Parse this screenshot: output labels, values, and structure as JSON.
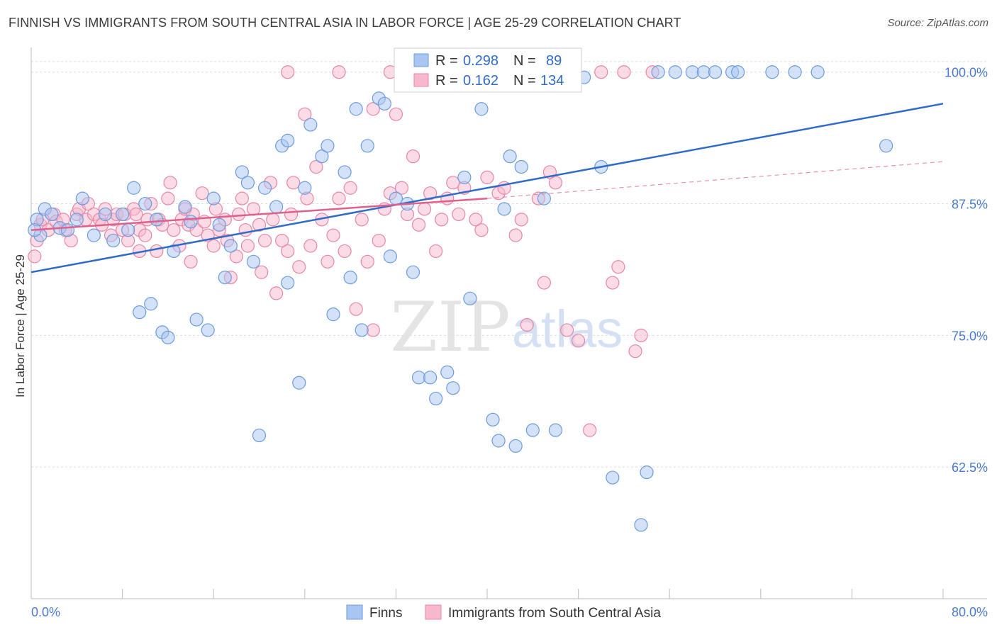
{
  "title": "FINNISH VS IMMIGRANTS FROM SOUTH CENTRAL ASIA IN LABOR FORCE | AGE 25-29 CORRELATION CHART",
  "source": "Source: ZipAtlas.com",
  "watermark": {
    "zip": "ZIP",
    "atlas": "atlas"
  },
  "chart_data": {
    "type": "scatter",
    "ylabel": "In Labor Force | Age 25-29",
    "xlabel": "",
    "xlim": [
      0,
      80
    ],
    "ylim": [
      50,
      102
    ],
    "x_tick_labels": [
      "0.0%",
      "80.0%"
    ],
    "y_ticks": [
      62.5,
      75.0,
      87.5,
      100.0
    ],
    "y_tick_labels": [
      "62.5%",
      "75.0%",
      "87.5%",
      "100.0%"
    ],
    "grid": true,
    "legend_position": "bottom",
    "stats_position": "top-center",
    "colors": {
      "finns_fill": "#a9c6f2",
      "finns_edge": "#6b9be0",
      "finns_line": "#2f6bc9",
      "asia_fill": "#f7b8cc",
      "asia_edge": "#e886a6",
      "asia_line": "#e0608b",
      "text_blue": "#2f6bc9",
      "grid": "#dddddd"
    },
    "series": [
      {
        "name": "Finns",
        "stats": {
          "r_label": "R =",
          "r": "0.298",
          "n_label": "N =",
          "n": "89"
        },
        "trend": {
          "x": [
            0,
            80
          ],
          "y": [
            81.0,
            97.0
          ],
          "dashed_to": null
        },
        "points": [
          [
            0.5,
            86.0
          ],
          [
            0.8,
            84.5
          ],
          [
            1.2,
            87.0
          ],
          [
            1.8,
            86.5
          ],
          [
            2.5,
            85.2
          ],
          [
            3.2,
            85.0
          ],
          [
            4.0,
            86.0
          ],
          [
            4.5,
            88.0
          ],
          [
            5.5,
            84.5
          ],
          [
            6.5,
            86.5
          ],
          [
            7.2,
            84.0
          ],
          [
            8.0,
            86.5
          ],
          [
            8.5,
            85.0
          ],
          [
            9.5,
            77.2
          ],
          [
            10.5,
            78.0
          ],
          [
            11.5,
            75.3
          ],
          [
            12.0,
            74.8
          ],
          [
            9.0,
            89.0
          ],
          [
            10.0,
            87.5
          ],
          [
            11.0,
            86.0
          ],
          [
            12.5,
            83.0
          ],
          [
            13.5,
            87.2
          ],
          [
            14.0,
            85.8
          ],
          [
            14.5,
            76.5
          ],
          [
            15.5,
            75.5
          ],
          [
            16.0,
            88.0
          ],
          [
            16.5,
            85.5
          ],
          [
            17.0,
            80.5
          ],
          [
            17.5,
            83.5
          ],
          [
            18.5,
            90.5
          ],
          [
            19.0,
            89.5
          ],
          [
            19.5,
            82.0
          ],
          [
            20.5,
            89.0
          ],
          [
            20.0,
            65.5
          ],
          [
            21.5,
            87.2
          ],
          [
            22.0,
            93.0
          ],
          [
            22.5,
            93.5
          ],
          [
            22.5,
            80.0
          ],
          [
            23.5,
            70.5
          ],
          [
            24.0,
            89.0
          ],
          [
            24.5,
            95.0
          ],
          [
            25.5,
            92.0
          ],
          [
            26.0,
            93.0
          ],
          [
            26.5,
            77.0
          ],
          [
            27.5,
            90.5
          ],
          [
            28.0,
            80.5
          ],
          [
            28.5,
            96.5
          ],
          [
            29.0,
            75.5
          ],
          [
            29.5,
            93.0
          ],
          [
            30.5,
            97.5
          ],
          [
            31.0,
            97.0
          ],
          [
            31.5,
            82.5
          ],
          [
            32.0,
            88.0
          ],
          [
            33.0,
            87.5
          ],
          [
            33.5,
            81.0
          ],
          [
            34.0,
            71.0
          ],
          [
            35.0,
            71.0
          ],
          [
            35.5,
            69.0
          ],
          [
            36.5,
            71.5
          ],
          [
            37.0,
            70.0
          ],
          [
            38.0,
            90.0
          ],
          [
            38.5,
            78.5
          ],
          [
            39.5,
            96.5
          ],
          [
            40.5,
            67.0
          ],
          [
            41.0,
            65.0
          ],
          [
            41.5,
            87.0
          ],
          [
            42.0,
            92.0
          ],
          [
            42.5,
            64.5
          ],
          [
            43.0,
            91.0
          ],
          [
            44.0,
            66.0
          ],
          [
            45.0,
            88.0
          ],
          [
            46.0,
            66.0
          ],
          [
            48.5,
            99.5
          ],
          [
            50.0,
            91.0
          ],
          [
            51.0,
            61.5
          ],
          [
            53.5,
            57.0
          ],
          [
            54.0,
            62.0
          ],
          [
            55.0,
            100.0
          ],
          [
            56.5,
            100.0
          ],
          [
            58.0,
            100.0
          ],
          [
            59.0,
            100.0
          ],
          [
            60.0,
            100.0
          ],
          [
            61.5,
            100.0
          ],
          [
            62.0,
            100.0
          ],
          [
            65.0,
            100.0
          ],
          [
            67.0,
            100.0
          ],
          [
            69.0,
            100.0
          ],
          [
            75.0,
            93.0
          ],
          [
            0.3,
            85.0
          ]
        ]
      },
      {
        "name": "Immigrants from South Central Asia",
        "stats": {
          "r_label": "R =",
          "r": "0.162",
          "n_label": "N =",
          "n": "134"
        },
        "trend": {
          "x": [
            0,
            40
          ],
          "y": [
            85.0,
            88.0
          ],
          "dashed_to": [
            80,
            91.5
          ]
        },
        "points": [
          [
            0.3,
            82.5
          ],
          [
            0.5,
            84.0
          ],
          [
            0.8,
            85.5
          ],
          [
            1.0,
            86.0
          ],
          [
            1.5,
            85.0
          ],
          [
            2.0,
            86.5
          ],
          [
            2.2,
            85.8
          ],
          [
            2.8,
            86.0
          ],
          [
            3.0,
            85.0
          ],
          [
            3.5,
            84.0
          ],
          [
            4.0,
            86.5
          ],
          [
            4.2,
            87.0
          ],
          [
            4.8,
            86.0
          ],
          [
            5.0,
            87.5
          ],
          [
            5.5,
            86.5
          ],
          [
            6.0,
            86.0
          ],
          [
            6.2,
            85.5
          ],
          [
            6.5,
            87.0
          ],
          [
            7.0,
            84.5
          ],
          [
            7.2,
            86.0
          ],
          [
            7.5,
            86.5
          ],
          [
            8.0,
            85.0
          ],
          [
            8.2,
            86.5
          ],
          [
            8.5,
            84.0
          ],
          [
            9.0,
            87.0
          ],
          [
            9.2,
            86.5
          ],
          [
            9.5,
            85.0
          ],
          [
            10.0,
            84.5
          ],
          [
            10.2,
            86.0
          ],
          [
            10.5,
            87.5
          ],
          [
            11.0,
            83.0
          ],
          [
            11.2,
            86.0
          ],
          [
            11.5,
            85.5
          ],
          [
            12.0,
            88.0
          ],
          [
            12.2,
            89.5
          ],
          [
            12.5,
            85.0
          ],
          [
            13.0,
            83.5
          ],
          [
            13.2,
            86.0
          ],
          [
            13.5,
            87.0
          ],
          [
            13.8,
            85.5
          ],
          [
            14.0,
            82.0
          ],
          [
            14.2,
            86.5
          ],
          [
            14.5,
            85.0
          ],
          [
            15.0,
            88.5
          ],
          [
            15.2,
            85.8
          ],
          [
            15.5,
            84.5
          ],
          [
            16.0,
            83.5
          ],
          [
            16.2,
            87.0
          ],
          [
            16.5,
            85.0
          ],
          [
            17.0,
            86.0
          ],
          [
            17.2,
            84.0
          ],
          [
            17.5,
            80.5
          ],
          [
            18.0,
            82.5
          ],
          [
            18.2,
            86.5
          ],
          [
            18.5,
            88.0
          ],
          [
            18.8,
            85.0
          ],
          [
            19.0,
            83.5
          ],
          [
            19.5,
            87.0
          ],
          [
            20.0,
            85.5
          ],
          [
            20.2,
            81.0
          ],
          [
            20.5,
            84.0
          ],
          [
            21.0,
            89.5
          ],
          [
            21.2,
            86.0
          ],
          [
            21.5,
            79.0
          ],
          [
            22.0,
            84.0
          ],
          [
            22.5,
            83.0
          ],
          [
            22.8,
            86.5
          ],
          [
            23.0,
            89.5
          ],
          [
            23.5,
            81.5
          ],
          [
            24.0,
            96.0
          ],
          [
            24.2,
            88.0
          ],
          [
            24.5,
            83.5
          ],
          [
            25.0,
            91.0
          ],
          [
            25.5,
            86.0
          ],
          [
            26.0,
            82.0
          ],
          [
            26.5,
            84.5
          ],
          [
            27.0,
            88.0
          ],
          [
            27.5,
            83.0
          ],
          [
            28.0,
            89.0
          ],
          [
            28.5,
            77.5
          ],
          [
            29.0,
            86.0
          ],
          [
            29.5,
            82.0
          ],
          [
            30.0,
            75.5
          ],
          [
            30.5,
            84.0
          ],
          [
            31.0,
            87.0
          ],
          [
            31.5,
            88.5
          ],
          [
            32.0,
            96.0
          ],
          [
            32.5,
            89.0
          ],
          [
            33.0,
            86.5
          ],
          [
            33.5,
            92.0
          ],
          [
            34.0,
            85.5
          ],
          [
            34.5,
            87.0
          ],
          [
            35.0,
            88.5
          ],
          [
            35.5,
            83.0
          ],
          [
            36.0,
            86.0
          ],
          [
            36.5,
            88.0
          ],
          [
            37.0,
            89.5
          ],
          [
            37.5,
            86.5
          ],
          [
            38.0,
            89.0
          ],
          [
            38.5,
            100.0
          ],
          [
            39.0,
            86.0
          ],
          [
            39.5,
            85.0
          ],
          [
            40.0,
            90.0
          ],
          [
            40.5,
            100.0
          ],
          [
            41.0,
            88.5
          ],
          [
            41.5,
            89.0
          ],
          [
            42.0,
            100.0
          ],
          [
            42.5,
            84.5
          ],
          [
            43.0,
            86.0
          ],
          [
            43.5,
            76.0
          ],
          [
            44.0,
            100.0
          ],
          [
            44.5,
            88.0
          ],
          [
            45.0,
            80.0
          ],
          [
            45.5,
            90.5
          ],
          [
            46.0,
            89.5
          ],
          [
            46.5,
            100.0
          ],
          [
            47.0,
            75.5
          ],
          [
            47.5,
            100.0
          ],
          [
            48.0,
            74.5
          ],
          [
            49.0,
            66.0
          ],
          [
            50.0,
            100.0
          ],
          [
            51.0,
            80.0
          ],
          [
            51.5,
            81.5
          ],
          [
            52.0,
            100.0
          ],
          [
            53.0,
            73.5
          ],
          [
            53.5,
            75.0
          ],
          [
            54.5,
            100.0
          ],
          [
            22.5,
            100.0
          ],
          [
            27.0,
            100.0
          ],
          [
            30.0,
            96.5
          ],
          [
            31.5,
            100.0
          ],
          [
            34.0,
            100.0
          ],
          [
            36.0,
            100.0
          ],
          [
            9.5,
            83.0
          ]
        ]
      }
    ]
  }
}
